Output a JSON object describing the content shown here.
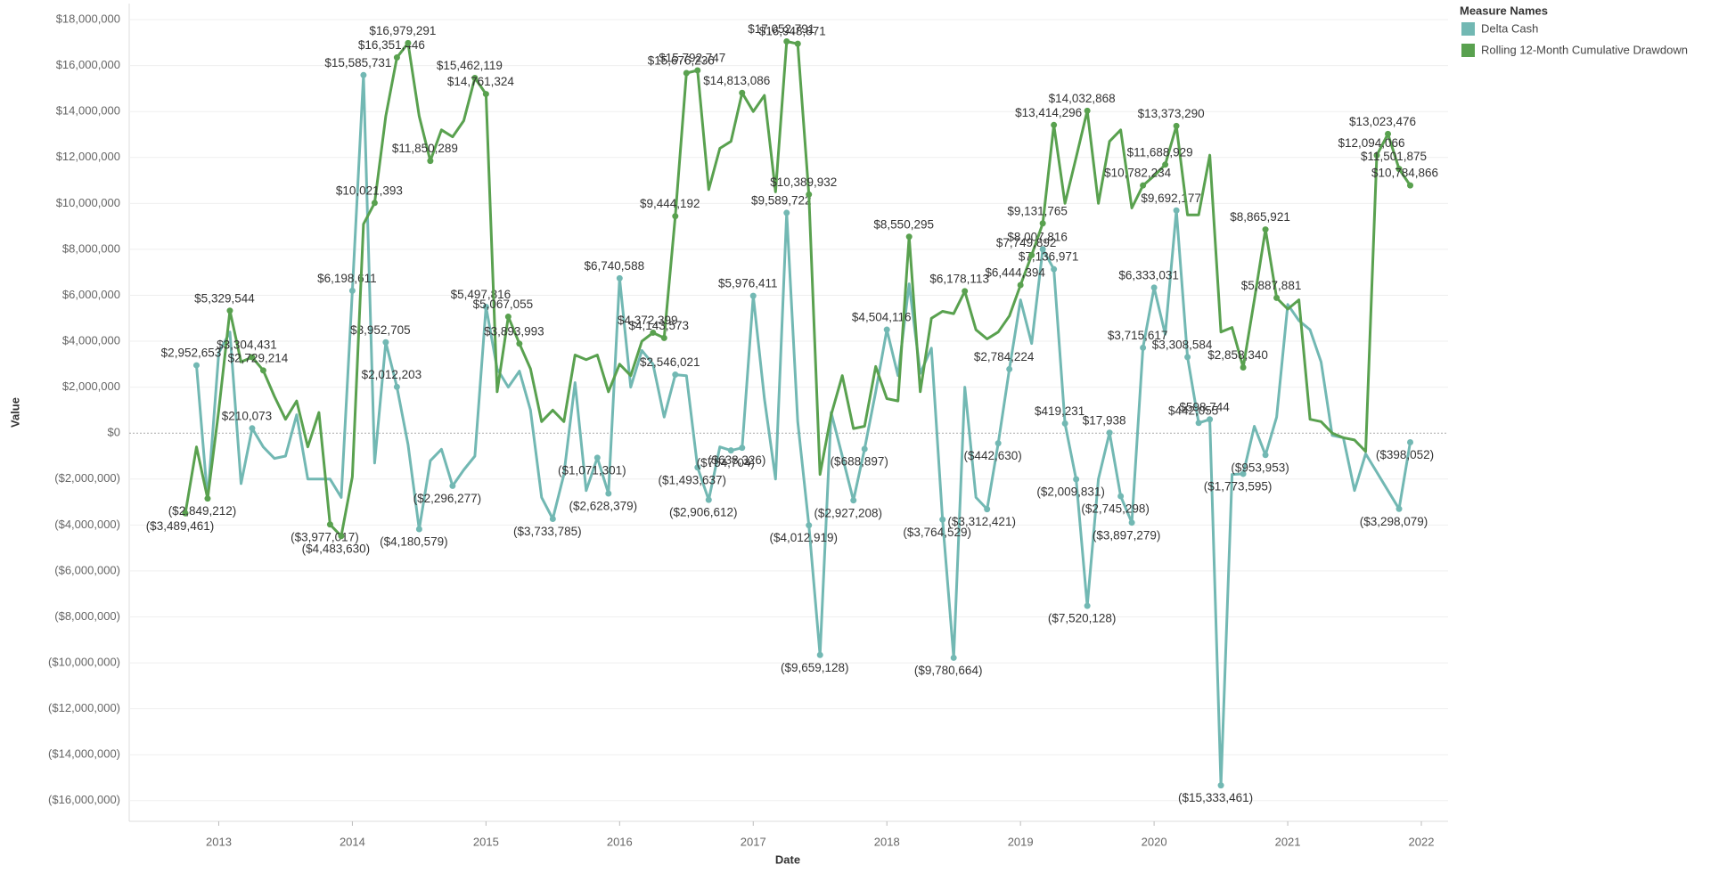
{
  "chart_data": {
    "type": "line",
    "x_label": "Date",
    "y_label": "Value",
    "legend_title": "Measure Names",
    "legend_position": "right",
    "grid": true,
    "xlim": [
      2012.33,
      2022.2
    ],
    "xticks": [
      2013,
      2014,
      2015,
      2016,
      2017,
      2018,
      2019,
      2020,
      2021,
      2022
    ],
    "ylim": [
      -16900000,
      18700000
    ],
    "yticks": [
      {
        "value": -16000000,
        "label": "($16,000,000)"
      },
      {
        "value": -14000000,
        "label": "($14,000,000)"
      },
      {
        "value": -12000000,
        "label": "($12,000,000)"
      },
      {
        "value": -10000000,
        "label": "($10,000,000)"
      },
      {
        "value": -8000000,
        "label": "($8,000,000)"
      },
      {
        "value": -6000000,
        "label": "($6,000,000)"
      },
      {
        "value": -4000000,
        "label": "($4,000,000)"
      },
      {
        "value": -2000000,
        "label": "($2,000,000)"
      },
      {
        "value": 0,
        "label": "$0"
      },
      {
        "value": 2000000,
        "label": "$2,000,000"
      },
      {
        "value": 4000000,
        "label": "$4,000,000"
      },
      {
        "value": 6000000,
        "label": "$6,000,000"
      },
      {
        "value": 8000000,
        "label": "$8,000,000"
      },
      {
        "value": 10000000,
        "label": "$10,000,000"
      },
      {
        "value": 12000000,
        "label": "$12,000,000"
      },
      {
        "value": 14000000,
        "label": "$14,000,000"
      },
      {
        "value": 16000000,
        "label": "$16,000,000"
      },
      {
        "value": 18000000,
        "label": "$18,000,000"
      }
    ],
    "x": [
      "2012-10",
      "2012-11",
      "2012-12",
      "2013-01",
      "2013-02",
      "2013-03",
      "2013-04",
      "2013-05",
      "2013-06",
      "2013-07",
      "2013-08",
      "2013-09",
      "2013-10",
      "2013-11",
      "2013-12",
      "2014-01",
      "2014-02",
      "2014-03",
      "2014-04",
      "2014-05",
      "2014-06",
      "2014-07",
      "2014-08",
      "2014-09",
      "2014-10",
      "2014-11",
      "2014-12",
      "2015-01",
      "2015-02",
      "2015-03",
      "2015-04",
      "2015-05",
      "2015-06",
      "2015-07",
      "2015-08",
      "2015-09",
      "2015-10",
      "2015-11",
      "2015-12",
      "2016-01",
      "2016-02",
      "2016-03",
      "2016-04",
      "2016-05",
      "2016-06",
      "2016-07",
      "2016-08",
      "2016-09",
      "2016-10",
      "2016-11",
      "2016-12",
      "2017-01",
      "2017-02",
      "2017-03",
      "2017-04",
      "2017-05",
      "2017-06",
      "2017-07",
      "2017-08",
      "2017-09",
      "2017-10",
      "2017-11",
      "2017-12",
      "2018-01",
      "2018-02",
      "2018-03",
      "2018-04",
      "2018-05",
      "2018-06",
      "2018-07",
      "2018-08",
      "2018-09",
      "2018-10",
      "2018-11",
      "2018-12",
      "2019-01",
      "2019-02",
      "2019-03",
      "2019-04",
      "2019-05",
      "2019-06",
      "2019-07",
      "2019-08",
      "2019-09",
      "2019-10",
      "2019-11",
      "2019-12",
      "2020-01",
      "2020-02",
      "2020-03",
      "2020-04",
      "2020-05",
      "2020-06",
      "2020-07",
      "2020-08",
      "2020-09",
      "2020-10",
      "2020-11",
      "2020-12",
      "2021-01",
      "2021-02",
      "2021-03",
      "2021-04",
      "2021-05",
      "2021-06",
      "2021-07",
      "2021-08",
      "2021-09",
      "2021-10",
      "2021-11",
      "2021-12"
    ],
    "series": [
      {
        "name": "Delta Cash",
        "color": "#72b8b3",
        "values": [
          null,
          2952653,
          -2900000,
          3500000,
          4400000,
          -2200000,
          210073,
          -600000,
          -1100000,
          -1000000,
          800000,
          -2000000,
          -2000000,
          -2000000,
          -2800000,
          6198611,
          15585731,
          -1300000,
          3952705,
          2012203,
          -500000,
          -4180579,
          -1200000,
          -700000,
          -2296277,
          -1600000,
          -1000000,
          5497816,
          2800000,
          2000000,
          2700000,
          1000000,
          -2800000,
          -3733785,
          -1800000,
          2200000,
          -2500000,
          -1071301,
          -2628379,
          6740588,
          2000000,
          3600000,
          3000000,
          700000,
          2546021,
          2500000,
          -1493637,
          -2906612,
          -600000,
          -754704,
          -638326,
          5976411,
          1500000,
          -2000000,
          9589722,
          500000,
          -4012919,
          -9659128,
          900000,
          -1000000,
          -2927208,
          -688897,
          1800000,
          4504116,
          2500000,
          6500000,
          2600000,
          3700000,
          -3764529,
          -9780664,
          2000000,
          -2800000,
          -3312421,
          -442630,
          2784224,
          5800000,
          3900000,
          8007816,
          7136971,
          419231,
          -2009831,
          -7520128,
          -2000000,
          17938,
          -2745298,
          -3897279,
          3715617,
          6333031,
          4300000,
          9692177,
          3308584,
          442055,
          598744,
          -15333461,
          -1800000,
          -1773595,
          300000,
          -953953,
          700000,
          5600000,
          4900000,
          4500000,
          3100000,
          -100000,
          -200000,
          -2500000,
          -900000,
          -1700000,
          -2500000,
          -3298079,
          -398052
        ],
        "value_labels": [
          null,
          "$2,952,653",
          null,
          null,
          null,
          null,
          "$210,073",
          null,
          null,
          null,
          null,
          null,
          null,
          null,
          null,
          "$6,198,611",
          "$15,585,731",
          null,
          "$3,952,705",
          "$2,012,203",
          null,
          "($4,180,579)",
          null,
          null,
          "($2,296,277)",
          null,
          null,
          "$5,497,816",
          null,
          null,
          null,
          null,
          null,
          "($3,733,785)",
          null,
          null,
          null,
          "($1,071,301)",
          "($2,628,379)",
          "$6,740,588",
          null,
          null,
          null,
          null,
          "$2,546,021",
          null,
          "($1,493,637)",
          "($2,906,612)",
          null,
          "($754,704)",
          "($638,326)",
          "$5,976,411",
          null,
          null,
          "$9,589,722",
          null,
          "($4,012,919)",
          "($9,659,128)",
          null,
          null,
          "($2,927,208)",
          "($688,897)",
          null,
          "$4,504,116",
          null,
          null,
          null,
          null,
          "($3,764,529)",
          "($9,780,664)",
          null,
          null,
          "($3,312,421)",
          "($442,630)",
          "$2,784,224",
          null,
          null,
          "$8,007,816",
          "$7,136,971",
          "$419,231",
          "($2,009,831)",
          "($7,520,128)",
          null,
          "$17,938",
          "($2,745,298)",
          "($3,897,279)",
          "$3,715,617",
          "$6,333,031",
          null,
          "$9,692,177",
          "$3,308,584",
          "$442,055",
          "$598,744",
          "($15,333,461)",
          null,
          "($1,773,595)",
          null,
          "($953,953)",
          null,
          null,
          null,
          null,
          null,
          null,
          null,
          null,
          null,
          null,
          null,
          "($3,298,079)",
          "($398,052)"
        ]
      },
      {
        "name": "Rolling 12-Month Cumulative Drawdown",
        "color": "#59a14f",
        "values": [
          -3489461,
          -600000,
          -2849212,
          1000000,
          5329544,
          3100000,
          3304431,
          2729214,
          1600000,
          600000,
          1400000,
          -600000,
          900000,
          -3977017,
          -4483630,
          -1900000,
          9100000,
          10021393,
          13800000,
          16351446,
          16979291,
          13800000,
          11850289,
          13200000,
          12900000,
          13600000,
          15462119,
          14761324,
          1800000,
          5067055,
          3893993,
          2800000,
          500000,
          1000000,
          500000,
          3400000,
          3200000,
          3400000,
          1800000,
          3000000,
          2500000,
          4000000,
          4372399,
          4143573,
          9444192,
          15676236,
          15792747,
          10600000,
          12400000,
          12700000,
          14813086,
          14000000,
          14700000,
          10500000,
          17052791,
          16948871,
          10389932,
          -1800000,
          800000,
          2500000,
          200000,
          300000,
          2900000,
          1500000,
          1400000,
          8550295,
          1800000,
          5000000,
          5300000,
          5200000,
          6178113,
          4500000,
          4100000,
          4400000,
          5100000,
          6444394,
          7749892,
          9131765,
          13414296,
          10000000,
          12000000,
          14032868,
          10000000,
          12700000,
          13200000,
          9800000,
          10782234,
          11200000,
          11688929,
          13373290,
          9500000,
          9500000,
          12100000,
          4400000,
          4600000,
          2858340,
          5800000,
          8865921,
          5887881,
          5400000,
          5800000,
          600000,
          500000,
          0,
          -200000,
          -300000,
          -800000,
          12094066,
          13023476,
          11501875,
          10784866
        ],
        "value_labels": [
          "($3,489,461)",
          null,
          "($2,849,212)",
          null,
          "$5,329,544",
          null,
          "$3,304,431",
          "$2,729,214",
          null,
          null,
          null,
          null,
          null,
          "($3,977,017)",
          "($4,483,630)",
          null,
          null,
          "$10,021,393",
          null,
          "$16,351,446",
          "$16,979,291",
          null,
          "$11,850,289",
          null,
          null,
          null,
          "$15,462,119",
          "$14,761,324",
          null,
          "$5,067,055",
          "$3,893,993",
          null,
          null,
          null,
          null,
          null,
          null,
          null,
          null,
          null,
          null,
          null,
          "$4,372,399",
          "$4,143,573",
          "$9,444,192",
          "$15,676,236",
          "$15,792,747",
          null,
          null,
          null,
          "$14,813,086",
          null,
          null,
          null,
          "$17,052,791",
          "$16,948,871",
          "$10,389,932",
          null,
          null,
          null,
          null,
          null,
          null,
          null,
          null,
          "$8,550,295",
          null,
          null,
          null,
          null,
          "$6,178,113",
          null,
          null,
          null,
          null,
          "$6,444,394",
          "$7,749,892",
          "$9,131,765",
          "$13,414,296",
          null,
          null,
          "$14,032,868",
          null,
          null,
          null,
          null,
          "$10,782,234",
          null,
          "$11,688,929",
          "$13,373,290",
          null,
          null,
          null,
          null,
          null,
          "$2,858,340",
          null,
          "$8,865,921",
          "$5,887,881",
          null,
          null,
          null,
          null,
          null,
          null,
          null,
          null,
          "$12,094,066",
          "$13,023,476",
          "$11,501,875",
          "$10,784,866"
        ]
      }
    ]
  }
}
